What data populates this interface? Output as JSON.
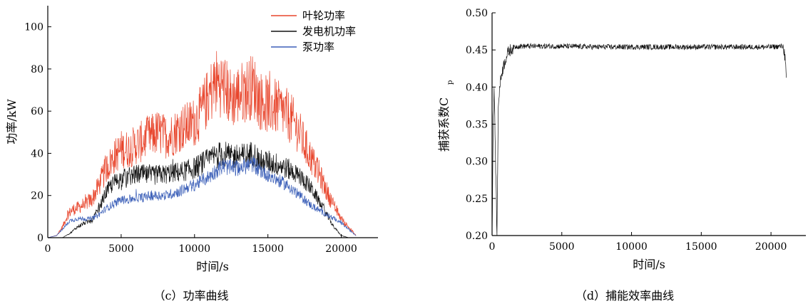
{
  "chart_data": [
    {
      "type": "line",
      "caption": "（c）功率曲线",
      "xlabel": "时间/s",
      "ylabel": "功率/kW",
      "xlim": [
        0,
        22500
      ],
      "ylim": [
        0,
        110
      ],
      "xticks": [
        0,
        5000,
        10000,
        15000,
        20000
      ],
      "yticks": [
        0,
        20,
        40,
        60,
        80,
        100
      ],
      "legend_position": "top-right",
      "series": [
        {
          "name": "叶轮功率",
          "color": "#e8452c",
          "x": [
            0,
            600,
            1000,
            1300,
            1600,
            2000,
            2500,
            3000,
            3500,
            4000,
            4500,
            5000,
            5500,
            6000,
            6500,
            7000,
            7500,
            8000,
            8500,
            9000,
            9500,
            10000,
            10500,
            11000,
            11500,
            12000,
            12500,
            13000,
            13500,
            14000,
            14500,
            15000,
            15500,
            16000,
            16500,
            17000,
            17500,
            18000,
            18500,
            19000,
            19500,
            20000,
            20500,
            21000
          ],
          "y": [
            0,
            1,
            5,
            10,
            13,
            14,
            16,
            18,
            25,
            33,
            38,
            42,
            42,
            44,
            46,
            48,
            50,
            48,
            49,
            52,
            53,
            55,
            60,
            68,
            74,
            72,
            66,
            68,
            70,
            72,
            65,
            63,
            62,
            60,
            57,
            52,
            44,
            37,
            30,
            22,
            15,
            9,
            5,
            1
          ]
        },
        {
          "name": "发电机功率",
          "color": "#111111",
          "x": [
            0,
            600,
            1000,
            1500,
            2000,
            2500,
            3000,
            3500,
            4000,
            4500,
            5000,
            5500,
            6000,
            6500,
            7000,
            7500,
            8000,
            8500,
            9000,
            9500,
            10000,
            10500,
            11000,
            11500,
            12000,
            12500,
            13000,
            13500,
            14000,
            14500,
            15000,
            15500,
            16000,
            16500,
            17000,
            17500,
            18000,
            18500,
            19000,
            19500,
            20000,
            20500,
            21000
          ],
          "y": [
            0,
            0,
            0,
            2,
            5,
            7,
            8,
            14,
            22,
            26,
            28,
            29,
            30,
            30,
            29,
            30,
            30,
            31,
            31,
            32,
            33,
            35,
            37,
            39,
            40,
            38,
            39,
            39,
            40,
            36,
            36,
            35,
            34,
            32,
            30,
            27,
            23,
            17,
            11,
            5,
            1,
            0,
            0
          ]
        },
        {
          "name": "泵功率",
          "color": "#3b5fb8",
          "x": [
            0,
            600,
            1000,
            1500,
            2000,
            2500,
            3000,
            3500,
            4000,
            4500,
            5000,
            5500,
            6000,
            6500,
            7000,
            7500,
            8000,
            8500,
            9000,
            9500,
            10000,
            10500,
            11000,
            11500,
            12000,
            12500,
            13000,
            13500,
            14000,
            14500,
            15000,
            15500,
            16000,
            16500,
            17000,
            17500,
            18000,
            18500,
            19000,
            19500,
            20000,
            20500,
            21000
          ],
          "y": [
            0,
            1,
            4,
            8,
            9,
            9,
            9,
            11,
            14,
            16,
            18,
            18,
            19,
            19,
            20,
            20,
            20,
            21,
            22,
            24,
            25,
            27,
            29,
            32,
            34,
            33,
            33,
            34,
            35,
            32,
            30,
            28,
            26,
            24,
            21,
            18,
            15,
            13,
            11,
            9,
            7,
            4,
            1
          ]
        }
      ]
    },
    {
      "type": "line",
      "caption": "（d）捕能效率曲线",
      "xlabel": "时间/s",
      "ylabel": "捕获系数C",
      "ylabel_sub": "p",
      "xlim": [
        0,
        22500
      ],
      "ylim": [
        0.2,
        0.5
      ],
      "xticks": [
        0,
        5000,
        10000,
        15000,
        20000
      ],
      "yticks": [
        0.2,
        0.25,
        0.3,
        0.35,
        0.4,
        0.45,
        0.5
      ],
      "series": [
        {
          "color": "#111111",
          "x": [
            0,
            80,
            150,
            250,
            350,
            450,
            550,
            700,
            850,
            1000,
            1200,
            1500,
            1800,
            2500,
            5000,
            7500,
            10000,
            12500,
            15000,
            17500,
            20000,
            20900,
            21000,
            21100
          ],
          "y": [
            0.2,
            0.35,
            0.4,
            0.3,
            0.2,
            0.38,
            0.4,
            0.42,
            0.43,
            0.44,
            0.448,
            0.453,
            0.455,
            0.455,
            0.455,
            0.454,
            0.454,
            0.454,
            0.454,
            0.454,
            0.454,
            0.455,
            0.44,
            0.41
          ]
        }
      ]
    }
  ]
}
